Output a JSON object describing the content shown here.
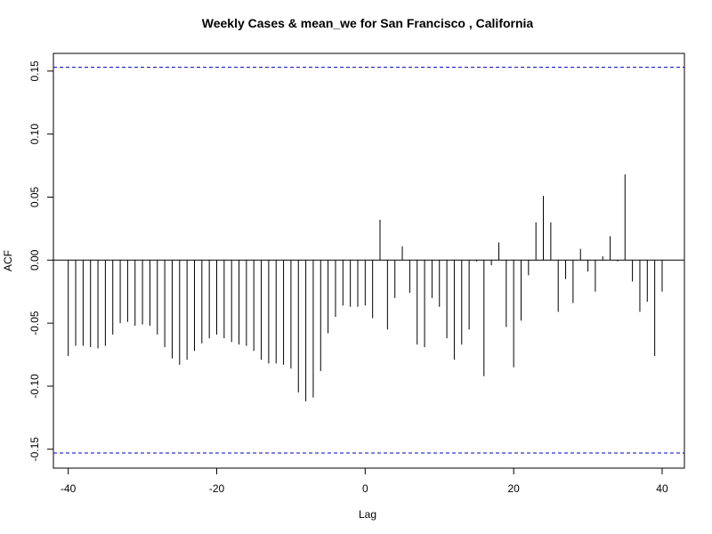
{
  "chart_data": {
    "type": "bar",
    "title": "Weekly Cases & mean_we for San Francisco , California",
    "xlabel": "Lag",
    "ylabel": "ACF",
    "xlim": [
      -42,
      43
    ],
    "ylim": [
      -0.165,
      0.164
    ],
    "x_ticks": [
      {
        "value": -40,
        "label": "-40"
      },
      {
        "value": -20,
        "label": "-20"
      },
      {
        "value": 0,
        "label": "0"
      },
      {
        "value": 20,
        "label": "20"
      },
      {
        "value": 40,
        "label": "40"
      }
    ],
    "y_ticks": [
      {
        "value": -0.15,
        "label": "-0.15"
      },
      {
        "value": -0.1,
        "label": "-0.10"
      },
      {
        "value": -0.05,
        "label": "-0.05"
      },
      {
        "value": 0.0,
        "label": "0.00"
      },
      {
        "value": 0.05,
        "label": "0.05"
      },
      {
        "value": 0.1,
        "label": "0.10"
      },
      {
        "value": 0.15,
        "label": "0.15"
      }
    ],
    "confidence_bounds": [
      0.153,
      -0.153
    ],
    "colors": {
      "bars": "#000000",
      "bounds": "#0000cc",
      "zero_line": "#000000",
      "frame": "#000000"
    },
    "x": [
      -40,
      -39,
      -38,
      -37,
      -36,
      -35,
      -34,
      -33,
      -32,
      -31,
      -30,
      -29,
      -28,
      -27,
      -26,
      -25,
      -24,
      -23,
      -22,
      -21,
      -20,
      -19,
      -18,
      -17,
      -16,
      -15,
      -14,
      -13,
      -12,
      -11,
      -10,
      -9,
      -8,
      -7,
      -6,
      -5,
      -4,
      -3,
      -2,
      -1,
      0,
      1,
      2,
      3,
      4,
      5,
      6,
      7,
      8,
      9,
      10,
      11,
      12,
      13,
      14,
      15,
      16,
      17,
      18,
      19,
      20,
      21,
      22,
      23,
      24,
      25,
      26,
      27,
      28,
      29,
      30,
      31,
      32,
      33,
      34,
      35,
      36,
      37,
      38,
      39,
      40
    ],
    "values": [
      -0.076,
      -0.068,
      -0.068,
      -0.069,
      -0.07,
      -0.068,
      -0.059,
      -0.05,
      -0.049,
      -0.052,
      -0.051,
      -0.052,
      -0.059,
      -0.069,
      -0.078,
      -0.083,
      -0.079,
      -0.072,
      -0.066,
      -0.062,
      -0.059,
      -0.062,
      -0.065,
      -0.067,
      -0.068,
      -0.072,
      -0.079,
      -0.082,
      -0.082,
      -0.083,
      -0.086,
      -0.105,
      -0.112,
      -0.109,
      -0.088,
      -0.058,
      -0.045,
      -0.036,
      -0.037,
      -0.037,
      -0.036,
      -0.046,
      0.032,
      -0.055,
      -0.03,
      0.011,
      -0.026,
      -0.067,
      -0.069,
      -0.03,
      -0.037,
      -0.062,
      -0.079,
      -0.067,
      -0.055,
      -0.001,
      -0.092,
      -0.004,
      0.014,
      -0.053,
      -0.085,
      -0.048,
      -0.012,
      0.03,
      0.051,
      0.03,
      -0.041,
      -0.015,
      -0.034,
      0.009,
      -0.009,
      -0.025,
      0.003,
      0.019,
      -0.001,
      0.068,
      -0.017,
      -0.041,
      -0.033,
      -0.076,
      -0.025
    ]
  }
}
